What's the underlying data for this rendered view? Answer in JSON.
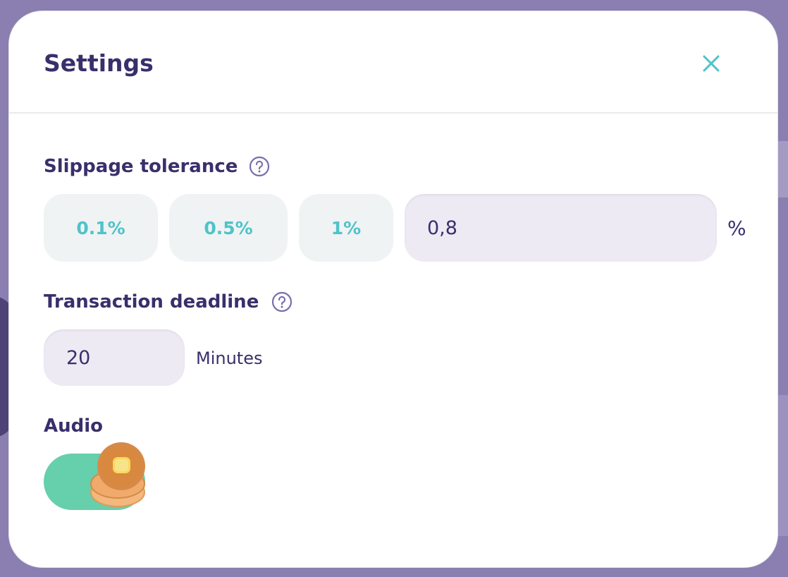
{
  "modal": {
    "title": "Settings",
    "close_icon": "close-icon"
  },
  "slippage": {
    "label": "Slippage tolerance",
    "help_icon": "question-circle-icon",
    "options": [
      "0.1%",
      "0.5%",
      "1%"
    ],
    "custom_value": "0,8",
    "unit": "%"
  },
  "deadline": {
    "label": "Transaction deadline",
    "help_icon": "question-circle-icon",
    "value": "20",
    "unit": "Minutes"
  },
  "audio": {
    "label": "Audio",
    "enabled": true,
    "knob_icon": "pancake-icon"
  },
  "colors": {
    "accent": "#4fc3c9",
    "text_primary": "#3a2f6b",
    "toggle_on": "#66cfab",
    "input_bg": "#eeeaf4",
    "button_bg": "#eff3f4",
    "backdrop": "#8a7fb0"
  }
}
